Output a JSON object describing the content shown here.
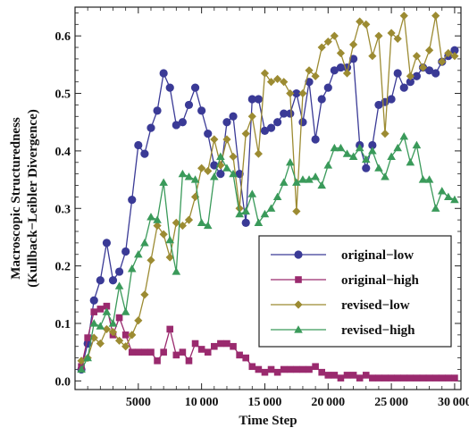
{
  "chart_data": {
    "type": "line",
    "xlabel": "Time Step",
    "ylabel_lines": [
      "Macroscopic Structuredness",
      "(Kullback−Leibler Divergence)"
    ],
    "xlim": [
      0,
      30500
    ],
    "ylim": [
      -0.015,
      0.65
    ],
    "x_ticks": [
      5000,
      10000,
      15000,
      20000,
      25000,
      30000
    ],
    "x_tick_labels": [
      "5000",
      "10 000",
      "15 000",
      "20 000",
      "25 000",
      "30 000"
    ],
    "y_ticks": [
      0.0,
      0.1,
      0.2,
      0.3,
      0.4,
      0.5,
      0.6
    ],
    "y_tick_labels": [
      "0.0",
      "0.1",
      "0.2",
      "0.3",
      "0.4",
      "0.5",
      "0.6"
    ],
    "legend_position": "lower-right",
    "series": [
      {
        "name": "original−low",
        "color": "#3a3a96",
        "marker": "circle",
        "x": [
          500,
          1000,
          1500,
          2000,
          2500,
          3000,
          3500,
          4000,
          4500,
          5000,
          5500,
          6000,
          6500,
          7000,
          7500,
          8000,
          8500,
          9000,
          9500,
          10000,
          10500,
          11000,
          11500,
          12000,
          12500,
          13000,
          13500,
          14000,
          14500,
          15000,
          15500,
          16000,
          16500,
          17000,
          17500,
          18000,
          18500,
          19000,
          19500,
          20000,
          20500,
          21000,
          21500,
          22000,
          22500,
          23000,
          23500,
          24000,
          24500,
          25000,
          25500,
          26000,
          26500,
          27000,
          27500,
          28000,
          28500,
          29000,
          29500,
          30000
        ],
        "values": [
          0.02,
          0.065,
          0.14,
          0.175,
          0.24,
          0.175,
          0.19,
          0.225,
          0.315,
          0.41,
          0.395,
          0.44,
          0.47,
          0.535,
          0.51,
          0.445,
          0.45,
          0.48,
          0.51,
          0.47,
          0.43,
          0.375,
          0.36,
          0.45,
          0.46,
          0.36,
          0.275,
          0.49,
          0.49,
          0.435,
          0.44,
          0.45,
          0.465,
          0.465,
          0.5,
          0.45,
          0.52,
          0.42,
          0.49,
          0.51,
          0.54,
          0.545,
          0.545,
          0.56,
          0.41,
          0.37,
          0.41,
          0.48,
          0.485,
          0.49,
          0.535,
          0.51,
          0.52,
          0.53,
          0.545,
          0.54,
          0.535,
          0.555,
          0.565,
          0.575
        ]
      },
      {
        "name": "original−high",
        "color": "#9a2a6e",
        "marker": "square",
        "x": [
          500,
          1000,
          1500,
          2000,
          2500,
          3000,
          3500,
          4000,
          4500,
          5000,
          5500,
          6000,
          6500,
          7000,
          7500,
          8000,
          8500,
          9000,
          9500,
          10000,
          10500,
          11000,
          11500,
          12000,
          12500,
          13000,
          13500,
          14000,
          14500,
          15000,
          15500,
          16000,
          16500,
          17000,
          17500,
          18000,
          18500,
          19000,
          19500,
          20000,
          20500,
          21000,
          21500,
          22000,
          22500,
          23000,
          23500,
          24000,
          24500,
          25000,
          25500,
          26000,
          26500,
          27000,
          27500,
          28000,
          28500,
          29000,
          29500,
          30000
        ],
        "values": [
          0.025,
          0.075,
          0.12,
          0.125,
          0.13,
          0.08,
          0.11,
          0.08,
          0.05,
          0.05,
          0.05,
          0.05,
          0.035,
          0.05,
          0.09,
          0.045,
          0.05,
          0.035,
          0.065,
          0.055,
          0.05,
          0.06,
          0.065,
          0.065,
          0.06,
          0.045,
          0.04,
          0.025,
          0.02,
          0.015,
          0.02,
          0.015,
          0.02,
          0.02,
          0.02,
          0.02,
          0.02,
          0.025,
          0.015,
          0.01,
          0.01,
          0.005,
          0.01,
          0.01,
          0.005,
          0.01,
          0.005,
          0.005,
          0.005,
          0.005,
          0.005,
          0.005,
          0.005,
          0.005,
          0.005,
          0.005,
          0.005,
          0.005,
          0.005,
          0.005
        ]
      },
      {
        "name": "revised−low",
        "color": "#9c8b32",
        "marker": "diamond",
        "x": [
          500,
          1000,
          1500,
          2000,
          2500,
          3000,
          3500,
          4000,
          4500,
          5000,
          5500,
          6000,
          6500,
          7000,
          7500,
          8000,
          8500,
          9000,
          9500,
          10000,
          10500,
          11000,
          11500,
          12000,
          12500,
          13000,
          13500,
          14000,
          14500,
          15000,
          15500,
          16000,
          16500,
          17000,
          17500,
          18000,
          18500,
          19000,
          19500,
          20000,
          20500,
          21000,
          21500,
          22000,
          22500,
          23000,
          23500,
          24000,
          24500,
          25000,
          25500,
          26000,
          26500,
          27000,
          27500,
          28000,
          28500,
          29000,
          29500,
          30000
        ],
        "values": [
          0.035,
          0.04,
          0.075,
          0.065,
          0.09,
          0.085,
          0.07,
          0.06,
          0.08,
          0.105,
          0.15,
          0.21,
          0.27,
          0.255,
          0.215,
          0.275,
          0.27,
          0.28,
          0.32,
          0.37,
          0.365,
          0.42,
          0.375,
          0.42,
          0.39,
          0.3,
          0.43,
          0.46,
          0.395,
          0.535,
          0.52,
          0.525,
          0.52,
          0.5,
          0.295,
          0.5,
          0.54,
          0.53,
          0.58,
          0.59,
          0.6,
          0.57,
          0.535,
          0.585,
          0.625,
          0.62,
          0.565,
          0.6,
          0.43,
          0.605,
          0.595,
          0.635,
          0.53,
          0.565,
          0.545,
          0.575,
          0.635,
          0.555,
          0.57,
          0.565
        ]
      },
      {
        "name": "revised−high",
        "color": "#3a9a5a",
        "marker": "triangle",
        "x": [
          500,
          1000,
          1500,
          2000,
          2500,
          3000,
          3500,
          4000,
          4500,
          5000,
          5500,
          6000,
          6500,
          7000,
          7500,
          8000,
          8500,
          9000,
          9500,
          10000,
          10500,
          11000,
          11500,
          12000,
          12500,
          13000,
          13500,
          14000,
          14500,
          15000,
          15500,
          16000,
          16500,
          17000,
          17500,
          18000,
          18500,
          19000,
          19500,
          20000,
          20500,
          21000,
          21500,
          22000,
          22500,
          23000,
          23500,
          24000,
          24500,
          25000,
          25500,
          26000,
          26500,
          27000,
          27500,
          28000,
          28500,
          29000,
          29500,
          30000
        ],
        "values": [
          0.02,
          0.04,
          0.1,
          0.095,
          0.12,
          0.1,
          0.165,
          0.12,
          0.195,
          0.22,
          0.24,
          0.285,
          0.28,
          0.345,
          0.245,
          0.19,
          0.36,
          0.355,
          0.35,
          0.275,
          0.27,
          0.355,
          0.39,
          0.37,
          0.36,
          0.29,
          0.295,
          0.325,
          0.275,
          0.29,
          0.3,
          0.32,
          0.345,
          0.38,
          0.345,
          0.35,
          0.35,
          0.355,
          0.34,
          0.375,
          0.405,
          0.405,
          0.395,
          0.39,
          0.405,
          0.385,
          0.4,
          0.37,
          0.355,
          0.39,
          0.405,
          0.425,
          0.38,
          0.41,
          0.35,
          0.35,
          0.3,
          0.33,
          0.32,
          0.315
        ]
      }
    ]
  }
}
